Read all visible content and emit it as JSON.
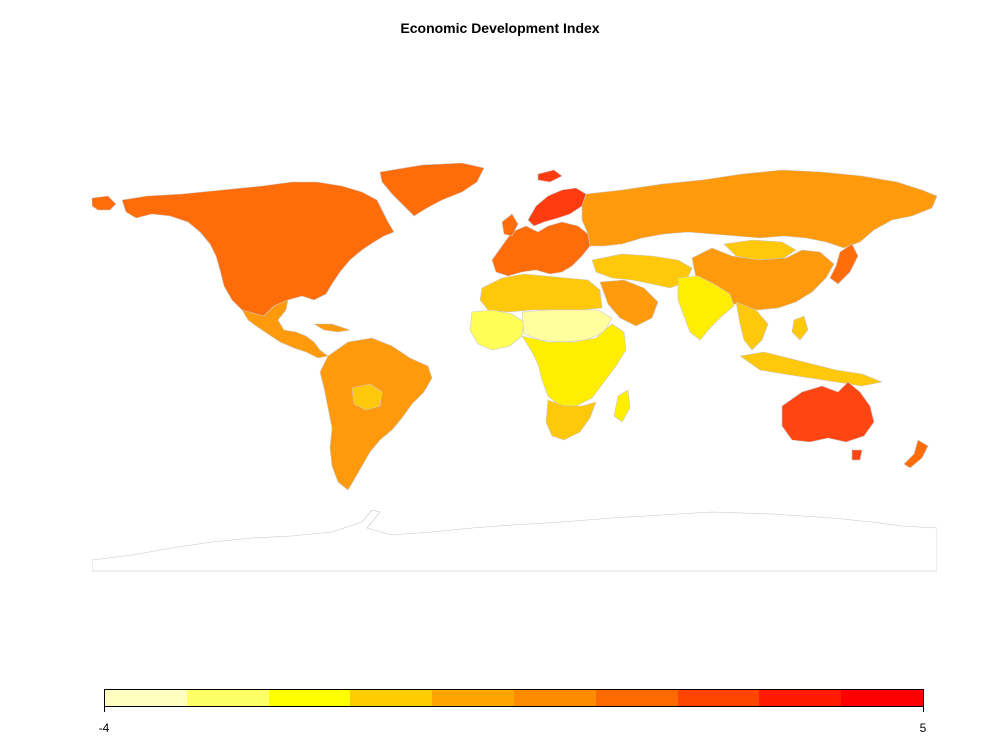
{
  "title": "Economic Development Index",
  "legend": {
    "min_label": "-4",
    "max_label": "5",
    "colors": [
      "#ffffbf",
      "#ffff66",
      "#ffff00",
      "#ffcc00",
      "#ffa500",
      "#ff8c00",
      "#ff6a00",
      "#ff4500",
      "#ff1a00",
      "#ff0000"
    ]
  },
  "map_colors": {
    "border": "#c8c8c8",
    "antarctica_fill": "#ffffff",
    "north_america": "#ff6d0a",
    "greenland": "#ff6d0a",
    "central_america": "#ff9a0c",
    "south_america": "#ff9a0c",
    "bolivia": "#ffc80a",
    "europe": "#ff6d0a",
    "scandinavia": "#ff3c10",
    "russia": "#ff9a0c",
    "mongolia": "#ffc80a",
    "china": "#ff9a0c",
    "japan_korea": "#ff6d0a",
    "north_africa": "#ffc80a",
    "west_africa": "#ffff55",
    "sahel": "#ffffa0",
    "central_africa": "#ffee00",
    "southern_africa": "#ffc80a",
    "madagascar": "#ffee00",
    "middle_east": "#ffc80a",
    "arabia": "#ff9a0c",
    "india": "#ffee00",
    "southeast_asia": "#ffc80a",
    "indonesia": "#ffc80a",
    "australia": "#ff4512",
    "new_zealand": "#ff6d0a"
  }
}
